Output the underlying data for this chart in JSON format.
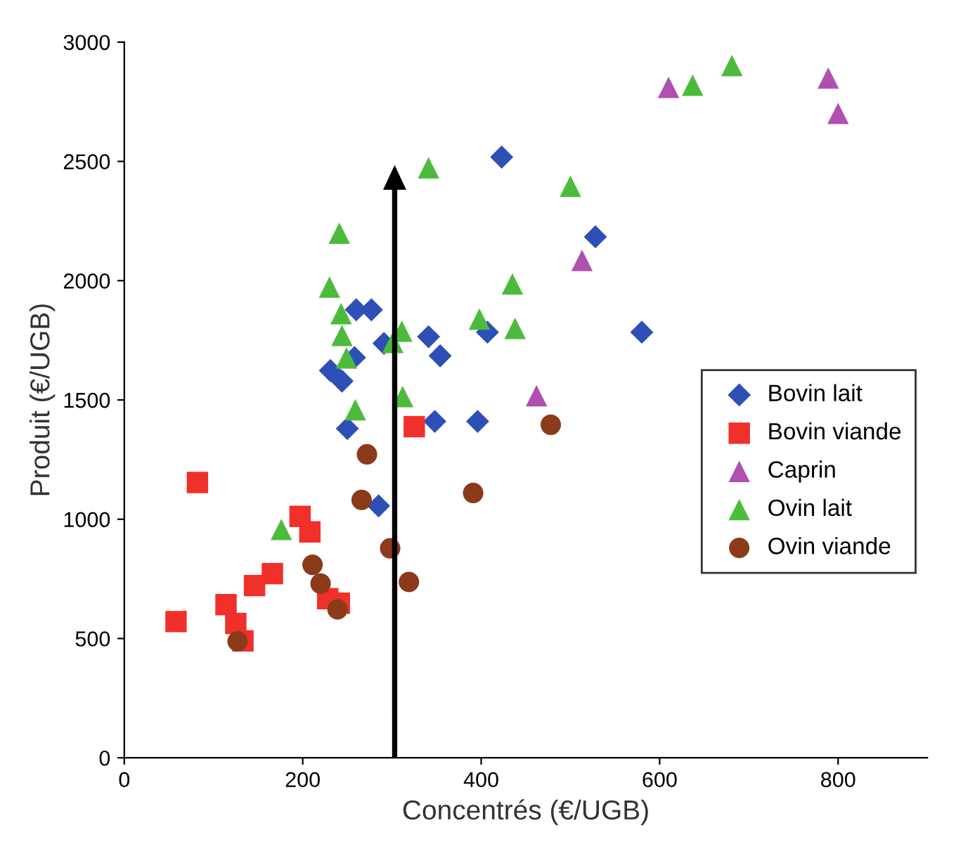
{
  "chart_data": {
    "type": "scatter",
    "xlabel": "Concentrés (€/UGB)",
    "ylabel": "Produit (€/UGB)",
    "xlim": [
      0,
      900
    ],
    "xticks": [
      0,
      200,
      400,
      600,
      800
    ],
    "ylim": [
      0,
      3000
    ],
    "yticks": [
      0,
      500,
      1000,
      1500,
      2000,
      2500,
      3000
    ],
    "grid": false,
    "legend": "right",
    "series": [
      {
        "name": "Bovin lait",
        "color": "#2e4fb5",
        "marker": "diamond",
        "x": [
          423,
          528,
          580,
          260,
          277,
          341,
          407,
          291,
          354,
          258,
          231,
          244,
          250,
          348,
          396,
          285
        ],
        "values": [
          2518,
          2184,
          1784,
          1878,
          1878,
          1765,
          1784,
          1737,
          1685,
          1678,
          1623,
          1579,
          1380,
          1410,
          1410,
          1056
        ]
      },
      {
        "name": "Bovin viande",
        "color": "#f0302a",
        "marker": "square",
        "x": [
          325,
          82,
          58,
          114,
          125,
          133,
          146,
          166,
          197,
          208,
          228,
          241
        ],
        "values": [
          1388,
          1154,
          571,
          642,
          563,
          490,
          722,
          772,
          1012,
          947,
          667,
          648
        ]
      },
      {
        "name": "Caprin",
        "color": "#b04fb0",
        "marker": "triangle",
        "x": [
          610,
          789,
          800,
          513,
          462
        ],
        "values": [
          2810,
          2849,
          2701,
          2085,
          1518
        ]
      },
      {
        "name": "Ovin lait",
        "color": "#4cbb3c",
        "marker": "triangle",
        "x": [
          341,
          500,
          241,
          230,
          243,
          435,
          398,
          438,
          244,
          311,
          301,
          249,
          312,
          259,
          176,
          637,
          681
        ],
        "values": [
          2473,
          2396,
          2199,
          1973,
          1862,
          1986,
          1839,
          1800,
          1770,
          1788,
          1741,
          1676,
          1514,
          1459,
          957,
          2819,
          2902
        ]
      },
      {
        "name": "Ovin viande",
        "color": "#8b3a1a",
        "marker": "circle",
        "x": [
          127,
          211,
          220,
          239,
          266,
          272,
          298,
          319,
          391,
          478
        ],
        "values": [
          488,
          809,
          730,
          622,
          1081,
          1272,
          878,
          737,
          1110,
          1396
        ]
      }
    ]
  }
}
